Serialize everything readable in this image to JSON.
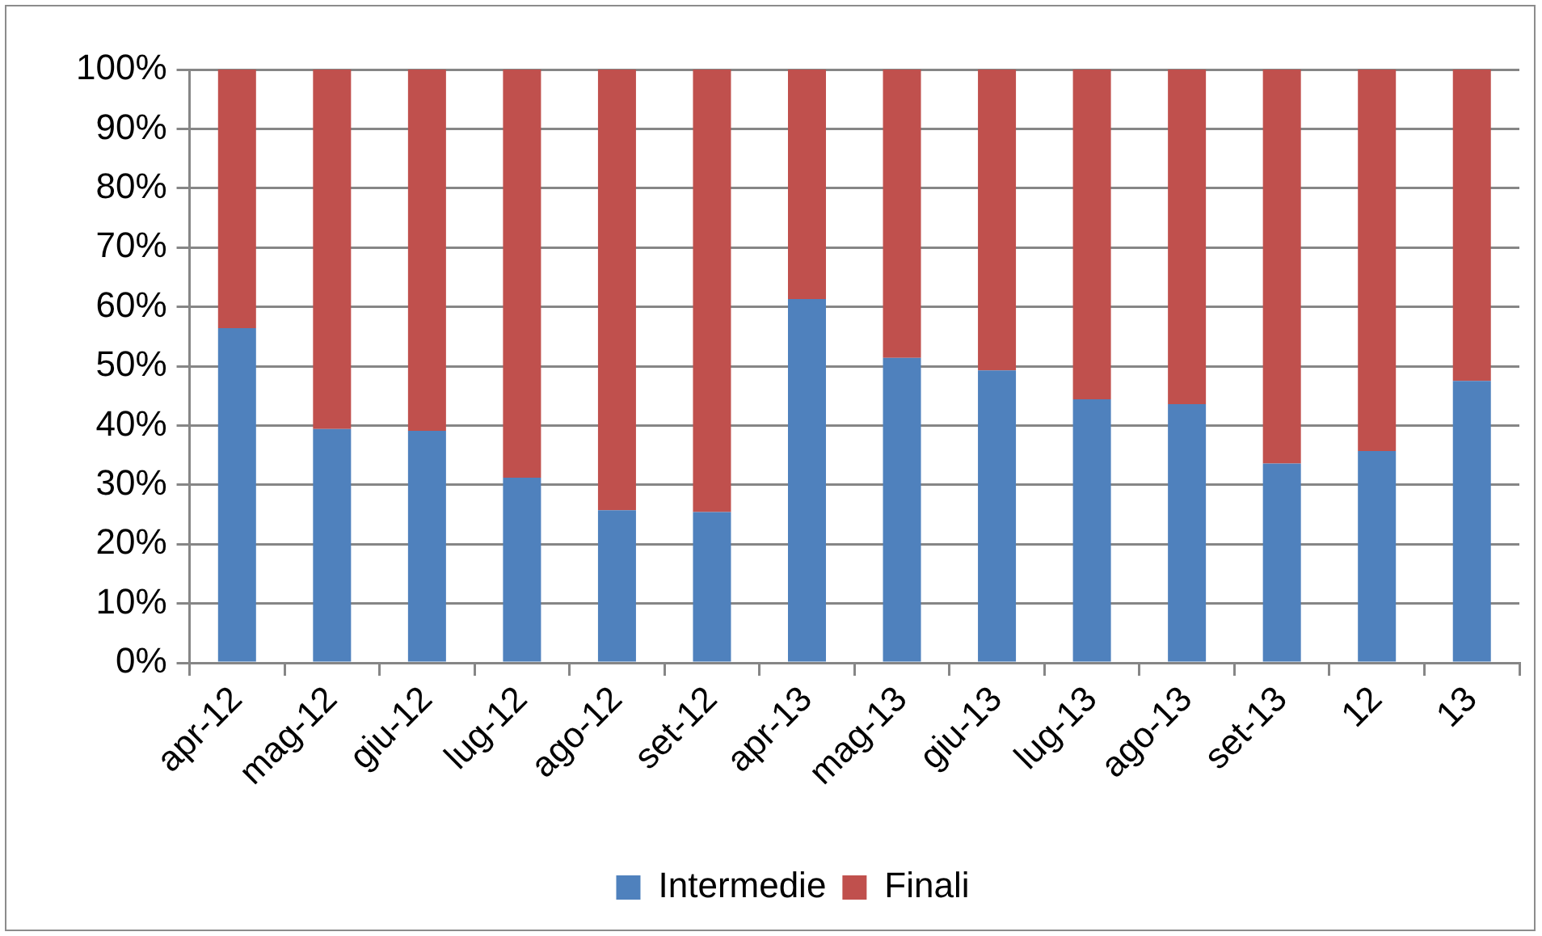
{
  "chart_data": {
    "type": "bar",
    "stacked": true,
    "categories": [
      "apr-12",
      "mag-12",
      "giu-12",
      "lug-12",
      "ago-12",
      "set-12",
      "apr-13",
      "mag-13",
      "giu-13",
      "lug-13",
      "ago-13",
      "set-13",
      "12",
      "13"
    ],
    "series": [
      {
        "name": "Intermedie",
        "color": "#4f81bd",
        "values": [
          56.4,
          39.4,
          39.1,
          31.2,
          25.7,
          25.4,
          61.3,
          51.4,
          49.3,
          44.4,
          43.6,
          33.6,
          35.7,
          47.5
        ]
      },
      {
        "name": "Finali",
        "color": "#c0504d",
        "values": [
          43.6,
          60.6,
          60.9,
          68.8,
          74.3,
          74.6,
          38.7,
          48.6,
          50.7,
          55.6,
          56.4,
          66.4,
          64.3,
          52.5
        ]
      }
    ],
    "ylim": [
      0,
      100
    ],
    "yticks": [
      {
        "value": 0,
        "label": "0%"
      },
      {
        "value": 10,
        "label": "10%"
      },
      {
        "value": 20,
        "label": "20%"
      },
      {
        "value": 30,
        "label": "30%"
      },
      {
        "value": 40,
        "label": "40%"
      },
      {
        "value": 50,
        "label": "50%"
      },
      {
        "value": 60,
        "label": "60%"
      },
      {
        "value": 70,
        "label": "70%"
      },
      {
        "value": 80,
        "label": "80%"
      },
      {
        "value": 90,
        "label": "90%"
      },
      {
        "value": 100,
        "label": "100%"
      }
    ],
    "grid": "y",
    "legend": "bottom"
  }
}
